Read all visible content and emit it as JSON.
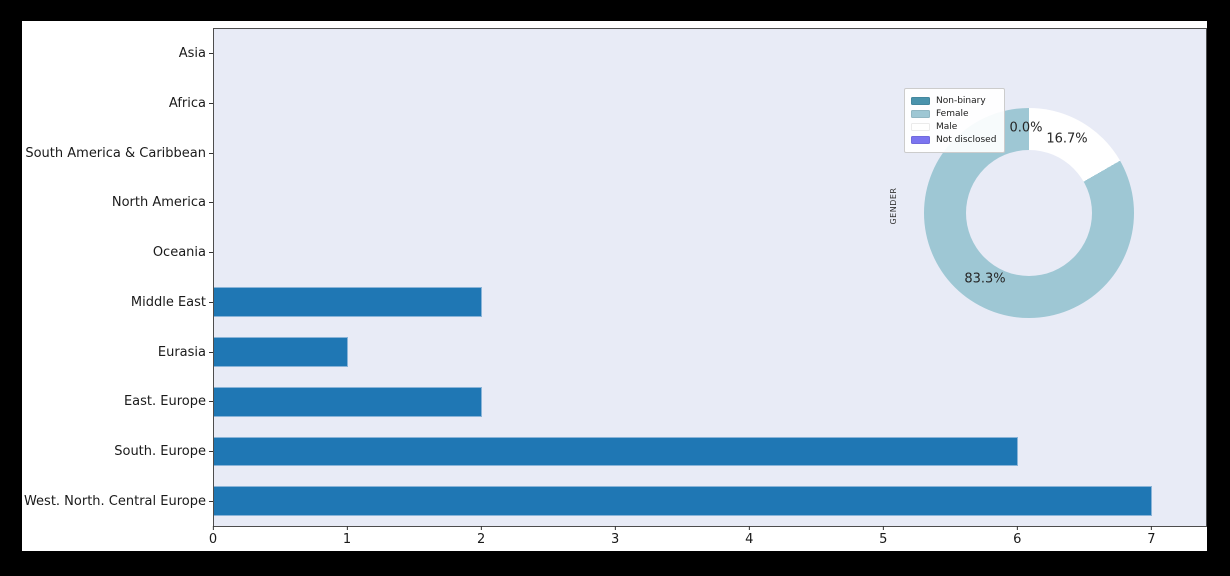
{
  "figure": {
    "outer_bg": "#000000",
    "fig_bg": "#ffffff",
    "plot_bg": "#e8ebf6",
    "spine_color": "#4d4d4d",
    "text_color": "#1a1a1a"
  },
  "chart_data": [
    {
      "type": "bar",
      "orientation": "horizontal",
      "title": "",
      "xlabel": "",
      "ylabel": "",
      "grid": false,
      "categories": [
        "Asia",
        "Africa",
        "South America & Caribbean",
        "North America",
        "Oceania",
        "Middle East",
        "Eurasia",
        "East. Europe",
        "South. Europe",
        "West. North. Central Europe"
      ],
      "values": [
        0,
        0,
        0,
        0,
        0,
        2,
        1,
        2,
        6,
        7
      ],
      "bar_color": "#1f77b4",
      "xlim": [
        0,
        7.4
      ],
      "xticks": [
        0,
        1,
        2,
        3,
        4,
        5,
        6,
        7
      ]
    },
    {
      "type": "pie",
      "donut": true,
      "ylabel": "GENDER",
      "legend_position": "upper left",
      "start_angle_deg": 90,
      "direction": "counterclockwise",
      "slices": [
        {
          "label": "Non-binary",
          "value": 0.0,
          "pct_label": "0.0%",
          "color": "#4a93ac"
        },
        {
          "label": "Female",
          "value": 83.3,
          "pct_label": "83.3%",
          "color": "#9ec7d4"
        },
        {
          "label": "Male",
          "value": 16.7,
          "pct_label": "16.7%",
          "color": "#ffffff"
        },
        {
          "label": "Not disclosed",
          "value": 0.0,
          "pct_label": "0.0%",
          "color": "#7b74f0"
        }
      ]
    }
  ]
}
